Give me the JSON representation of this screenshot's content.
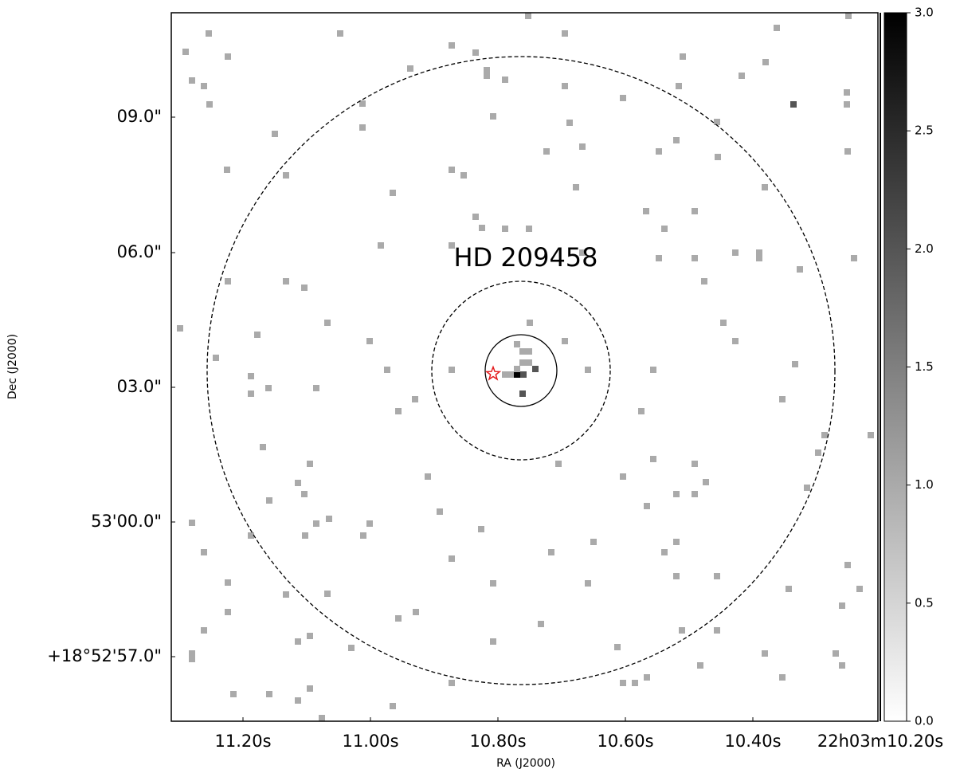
{
  "chart_data": {
    "type": "image",
    "xlabel": "RA (J2000)",
    "ylabel": "Dec (J2000)",
    "xlim": [
      0,
      887
    ],
    "ylim": [
      0,
      889
    ],
    "xticks": [
      {
        "value": 90,
        "label": "11.20s"
      },
      {
        "value": 250,
        "label": "11.00s"
      },
      {
        "value": 410,
        "label": "10.80s"
      },
      {
        "value": 570,
        "label": "10.60s"
      },
      {
        "value": 730,
        "label": "10.40s"
      },
      {
        "value": 890,
        "label": "22h03m10.20s"
      }
    ],
    "yticks": [
      {
        "value": 81,
        "label": "+18°52'57.0\""
      },
      {
        "value": 250,
        "label": "53'00.0\""
      },
      {
        "value": 419,
        "label": "03.0\""
      },
      {
        "value": 588,
        "label": "06.0\""
      },
      {
        "value": 758,
        "label": "09.0\""
      }
    ],
    "pixel_size": 8,
    "colormap": [
      "#ffffff",
      "#000000"
    ],
    "clim": [
      0,
      3
    ],
    "cticks": [
      {
        "value": 0,
        "label": "0.0"
      },
      {
        "value": 0.5,
        "label": "0.5"
      },
      {
        "value": 1,
        "label": "1.0"
      },
      {
        "value": 1.5,
        "label": "1.5"
      },
      {
        "value": 2,
        "label": "2.0"
      },
      {
        "value": 2.5,
        "label": "2.5"
      },
      {
        "value": 3,
        "label": "3.0"
      }
    ],
    "x": [
      448,
      47,
      212,
      352,
      494,
      850,
      760,
      18,
      71,
      382,
      300,
      396,
      396,
      419,
      494,
      642,
      746,
      716,
      26,
      41,
      48,
      240,
      404,
      500,
      567,
      637,
      848,
      848,
      781,
      130,
      240,
      685,
      471,
      516,
      612,
      634,
      849,
      70,
      144,
      352,
      367,
      278,
      508,
      686,
      745,
      596,
      657,
      382,
      390,
      419,
      449,
      619,
      263,
      352,
      516,
      612,
      657,
      708,
      738,
      738,
      789,
      857,
      71,
      144,
      167,
      669,
      196,
      450,
      693,
      11,
      108,
      249,
      494,
      708,
      56,
      783,
      100,
      271,
      352,
      523,
      605,
      100,
      122,
      182,
      306,
      285,
      590,
      767,
      820,
      878,
      115,
      812,
      174,
      486,
      605,
      657,
      322,
      567,
      671,
      798,
      159,
      167,
      123,
      597,
      634,
      657,
      337,
      198,
      389,
      26,
      249,
      182,
      241,
      168,
      100,
      530,
      634,
      477,
      619,
      41,
      352,
      404,
      523,
      634,
      71,
      685,
      849,
      864,
      775,
      842,
      144,
      196,
      71,
      285,
      307,
      464,
      41,
      641,
      685,
      174,
      159,
      404,
      226,
      560,
      26,
      26,
      745,
      834,
      842,
      664,
      597,
      767,
      174,
      352,
      567,
      582,
      78,
      123,
      159,
      189,
      278,
      434,
      442,
      457,
      441,
      426,
      419,
      441,
      434,
      441,
      449,
      434,
      449
    ],
    "y": [
      885,
      863,
      863,
      848,
      863,
      885,
      870,
      840,
      834,
      839,
      819,
      817,
      810,
      805,
      797,
      834,
      827,
      810,
      804,
      797,
      774,
      775,
      759,
      751,
      782,
      797,
      789,
      774,
      774,
      737,
      745,
      752,
      715,
      721,
      715,
      729,
      715,
      692,
      685,
      692,
      685,
      663,
      670,
      708,
      670,
      640,
      640,
      633,
      619,
      618,
      618,
      618,
      597,
      597,
      588,
      581,
      581,
      588,
      588,
      581,
      567,
      581,
      552,
      552,
      544,
      552,
      500,
      500,
      500,
      493,
      485,
      477,
      477,
      477,
      456,
      448,
      433,
      441,
      441,
      441,
      441,
      411,
      418,
      418,
      404,
      389,
      389,
      404,
      359,
      359,
      344,
      337,
      323,
      323,
      329,
      323,
      307,
      307,
      300,
      293,
      299,
      285,
      277,
      270,
      285,
      285,
      263,
      254,
      241,
      249,
      248,
      248,
      233,
      233,
      233,
      225,
      225,
      212,
      212,
      212,
      204,
      173,
      173,
      182,
      174,
      182,
      196,
      166,
      166,
      145,
      159,
      160,
      137,
      129,
      137,
      122,
      114,
      114,
      114,
      107,
      100,
      100,
      92,
      93,
      85,
      78,
      85,
      85,
      70,
      70,
      55,
      55,
      41,
      48,
      48,
      48,
      34,
      34,
      26,
      4,
      19,
      435,
      435,
      442,
      411,
      435,
      435,
      450,
      473,
      464,
      464,
      442,
      450
    ],
    "values": [
      1,
      1,
      1,
      1,
      1,
      1,
      1,
      1,
      1,
      1,
      1,
      1,
      1,
      1,
      1,
      1,
      1,
      1,
      1,
      1,
      1,
      1,
      1,
      1,
      1,
      1,
      1,
      1,
      2,
      1,
      1,
      1,
      1,
      1,
      1,
      1,
      1,
      1,
      1,
      1,
      1,
      1,
      1,
      1,
      1,
      1,
      1,
      1,
      1,
      1,
      1,
      1,
      1,
      1,
      1,
      1,
      1,
      1,
      1,
      1,
      1,
      1,
      1,
      1,
      1,
      1,
      1,
      1,
      1,
      1,
      1,
      1,
      1,
      1,
      1,
      1,
      1,
      1,
      1,
      1,
      1,
      1,
      1,
      1,
      1,
      1,
      1,
      1,
      1,
      1,
      1,
      1,
      1,
      1,
      1,
      1,
      1,
      1,
      1,
      1,
      1,
      1,
      1,
      1,
      1,
      1,
      1,
      1,
      1,
      1,
      1,
      1,
      1,
      1,
      1,
      1,
      1,
      1,
      1,
      1,
      1,
      1,
      1,
      1,
      1,
      1,
      1,
      1,
      1,
      1,
      1,
      1,
      1,
      1,
      1,
      1,
      1,
      1,
      1,
      1,
      1,
      1,
      1,
      1,
      1,
      1,
      1,
      1,
      1,
      1,
      1,
      1,
      1,
      1,
      1,
      1,
      1,
      1,
      1,
      1,
      1,
      3,
      2,
      2,
      2,
      1,
      1,
      1,
      1,
      1,
      1,
      1,
      1
    ],
    "center": [
      439,
      440
    ],
    "regions": [
      {
        "radius": 45,
        "style": "solid"
      },
      {
        "radius": 112,
        "style": "dashed"
      },
      {
        "radius": 394,
        "style": "dashed"
      }
    ],
    "marker": {
      "x": 404,
      "y": 436,
      "color": "#e31a1c"
    },
    "annotation": {
      "text": "HD 209458",
      "x": 445,
      "y": 580
    }
  }
}
